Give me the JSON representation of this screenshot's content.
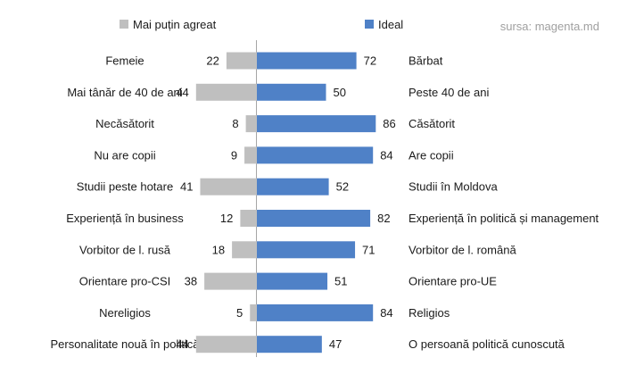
{
  "source_note": "sursa: magenta.md",
  "chart_data": {
    "type": "bar",
    "orientation": "horizontal-diverging",
    "legend_position": "top",
    "grid": false,
    "left_labels": [
      "Femeie",
      "Mai tânăr de 40 de ani",
      "Necăsătorit",
      "Nu are copii",
      "Studii peste hotare",
      "Experiență în business",
      "Vorbitor de l. rusă",
      "Orientare pro-CSI",
      "Nereligios",
      "Personalitate nouă în politică"
    ],
    "right_labels": [
      "Bărbat",
      "Peste 40 de ani",
      "Căsătorit",
      "Are copii",
      "Studii în Moldova",
      "Experiență în politică  și management",
      "Vorbitor de l. română",
      "Orientare pro-UE",
      "Religios",
      "O persoană politică cunoscută"
    ],
    "series": [
      {
        "name": "Mai puțin agreat",
        "color": "#bfbfbf",
        "values": [
          22,
          44,
          8,
          9,
          41,
          12,
          18,
          38,
          5,
          44
        ]
      },
      {
        "name": "Ideal",
        "color": "#4f81c7",
        "values": [
          72,
          50,
          86,
          84,
          52,
          82,
          71,
          51,
          84,
          47
        ]
      }
    ]
  }
}
